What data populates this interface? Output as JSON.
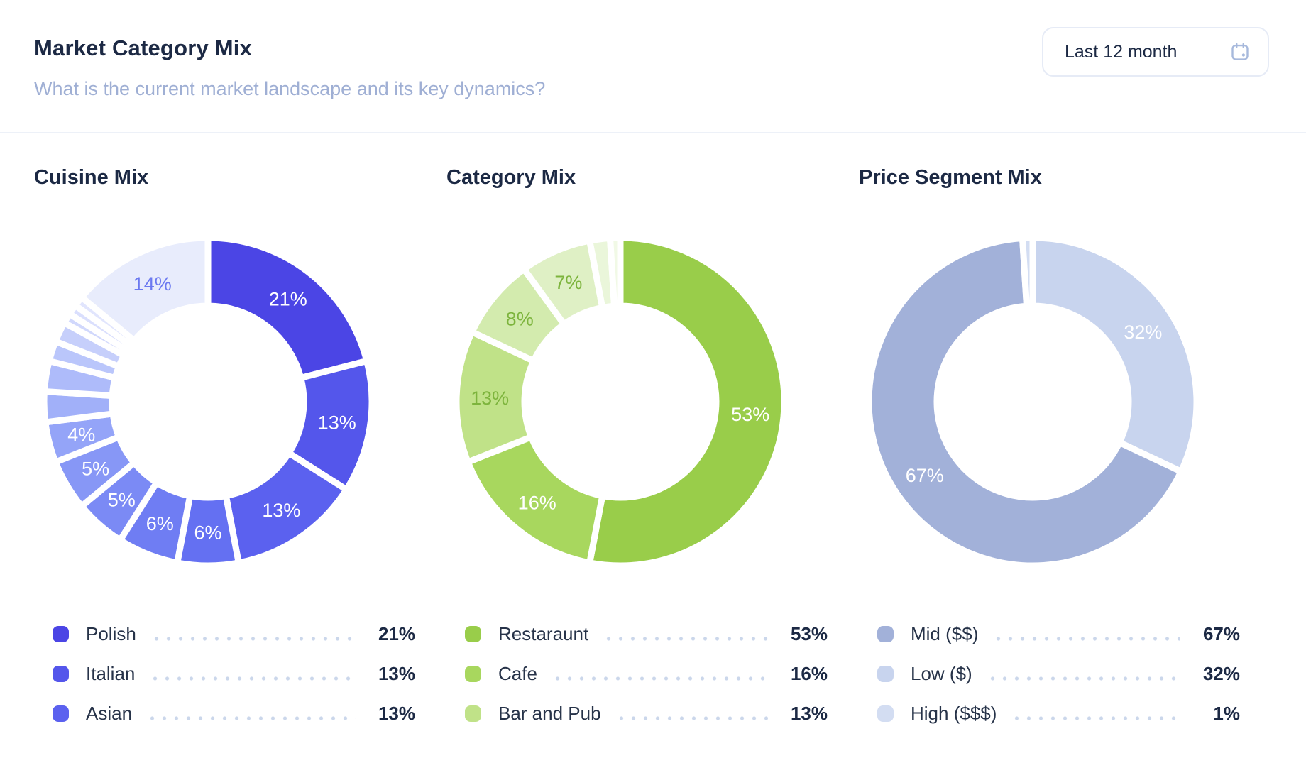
{
  "header": {
    "title": "Market Category Mix",
    "subtitle": "What is the current market landscape and its key dynamics?",
    "period_button": {
      "label": "Last 12 month",
      "icon": "calendar-icon"
    }
  },
  "colors": {
    "title_text": "#1C2944",
    "subtitle_text": "#9FAFD4",
    "divider": "#EDF1F8",
    "button_border": "#E6EBF6",
    "calendar_icon": "#A7B9DC",
    "leader_dots": "#CBD7EB",
    "slice_gap": "#FFFFFF"
  },
  "chart_data": [
    {
      "type": "pie",
      "title": "Cuisine Mix",
      "legend_position": "bottom",
      "start_angle_deg": 0,
      "slices": [
        {
          "value": 21,
          "color": "#4B45E5",
          "label": "21%",
          "label_color": "#FFFFFF"
        },
        {
          "value": 13,
          "color": "#5456EB",
          "label": "13%",
          "label_color": "#FFFFFF"
        },
        {
          "value": 13,
          "color": "#5B61EF",
          "label": "13%",
          "label_color": "#FFFFFF"
        },
        {
          "value": 6,
          "color": "#6470F2",
          "label": "6%",
          "label_color": "#FFFFFF"
        },
        {
          "value": 6,
          "color": "#6F7DF3",
          "label": "6%",
          "label_color": "#FFFFFF"
        },
        {
          "value": 5,
          "color": "#7B8AF5",
          "label": "5%",
          "label_color": "#FFFFFF"
        },
        {
          "value": 5,
          "color": "#8797F6",
          "label": "5%",
          "label_color": "#FFFFFF"
        },
        {
          "value": 4,
          "color": "#94A4F8",
          "label": "4%",
          "label_color": "#FFFFFF"
        },
        {
          "value": 3,
          "color": "#A1B0F9",
          "label": "",
          "label_color": ""
        },
        {
          "value": 3,
          "color": "#AEBBFA",
          "label": "",
          "label_color": ""
        },
        {
          "value": 2,
          "color": "#BAC6FB",
          "label": "",
          "label_color": ""
        },
        {
          "value": 2,
          "color": "#C6CFFB",
          "label": "",
          "label_color": ""
        },
        {
          "value": 1,
          "color": "#D1D8FC",
          "label": "",
          "label_color": ""
        },
        {
          "value": 1,
          "color": "#DADFFD",
          "label": "",
          "label_color": ""
        },
        {
          "value": 1,
          "color": "#E1E5FD",
          "label": "",
          "label_color": ""
        },
        {
          "value": 14,
          "color": "#E8ECFC",
          "label": "14%",
          "label_color": "#6B79F0"
        }
      ],
      "legend": [
        {
          "label": "Polish",
          "value": "21%",
          "color": "#4B45E5"
        },
        {
          "label": "Italian",
          "value": "13%",
          "color": "#5456EB"
        },
        {
          "label": "Asian",
          "value": "13%",
          "color": "#5B61EF"
        }
      ]
    },
    {
      "type": "pie",
      "title": "Category Mix",
      "legend_position": "bottom",
      "start_angle_deg": 0,
      "slices": [
        {
          "value": 53,
          "color": "#99CD4A",
          "label": "53%",
          "label_color": "#FFFFFF"
        },
        {
          "value": 16,
          "color": "#A8D75E",
          "label": "16%",
          "label_color": "#FFFFFF"
        },
        {
          "value": 13,
          "color": "#C0E288",
          "label": "13%",
          "label_color": "#7DB43D"
        },
        {
          "value": 8,
          "color": "#D3EBAE",
          "label": "8%",
          "label_color": "#7DB43D"
        },
        {
          "value": 7,
          "color": "#DFF0C5",
          "label": "7%",
          "label_color": "#7DB43D"
        },
        {
          "value": 2,
          "color": "#EAF6DA",
          "label": "",
          "label_color": ""
        },
        {
          "value": 1,
          "color": "#F1F9E6",
          "label": "",
          "label_color": ""
        }
      ],
      "legend": [
        {
          "label": "Restaraunt",
          "value": "53%",
          "color": "#99CD4A"
        },
        {
          "label": "Cafe",
          "value": "16%",
          "color": "#A8D75E"
        },
        {
          "label": "Bar and Pub",
          "value": "13%",
          "color": "#C0E288"
        }
      ]
    },
    {
      "type": "pie",
      "title": "Price Segment Mix",
      "legend_position": "bottom",
      "start_angle_deg": 0,
      "slices": [
        {
          "value": 32,
          "color": "#C8D4EE",
          "label": "32%",
          "label_color": "#FFFFFF"
        },
        {
          "value": 67,
          "color": "#A2B1D9",
          "label": "67%",
          "label_color": "#FFFFFF"
        },
        {
          "value": 1,
          "color": "#D3DDF2",
          "label": "",
          "label_color": ""
        }
      ],
      "legend": [
        {
          "label": "Mid ($$)",
          "value": "67%",
          "color": "#A2B1D9"
        },
        {
          "label": "Low ($)",
          "value": "32%",
          "color": "#C8D4EE"
        },
        {
          "label": "High ($$$)",
          "value": "1%",
          "color": "#D3DDF2"
        }
      ]
    }
  ]
}
